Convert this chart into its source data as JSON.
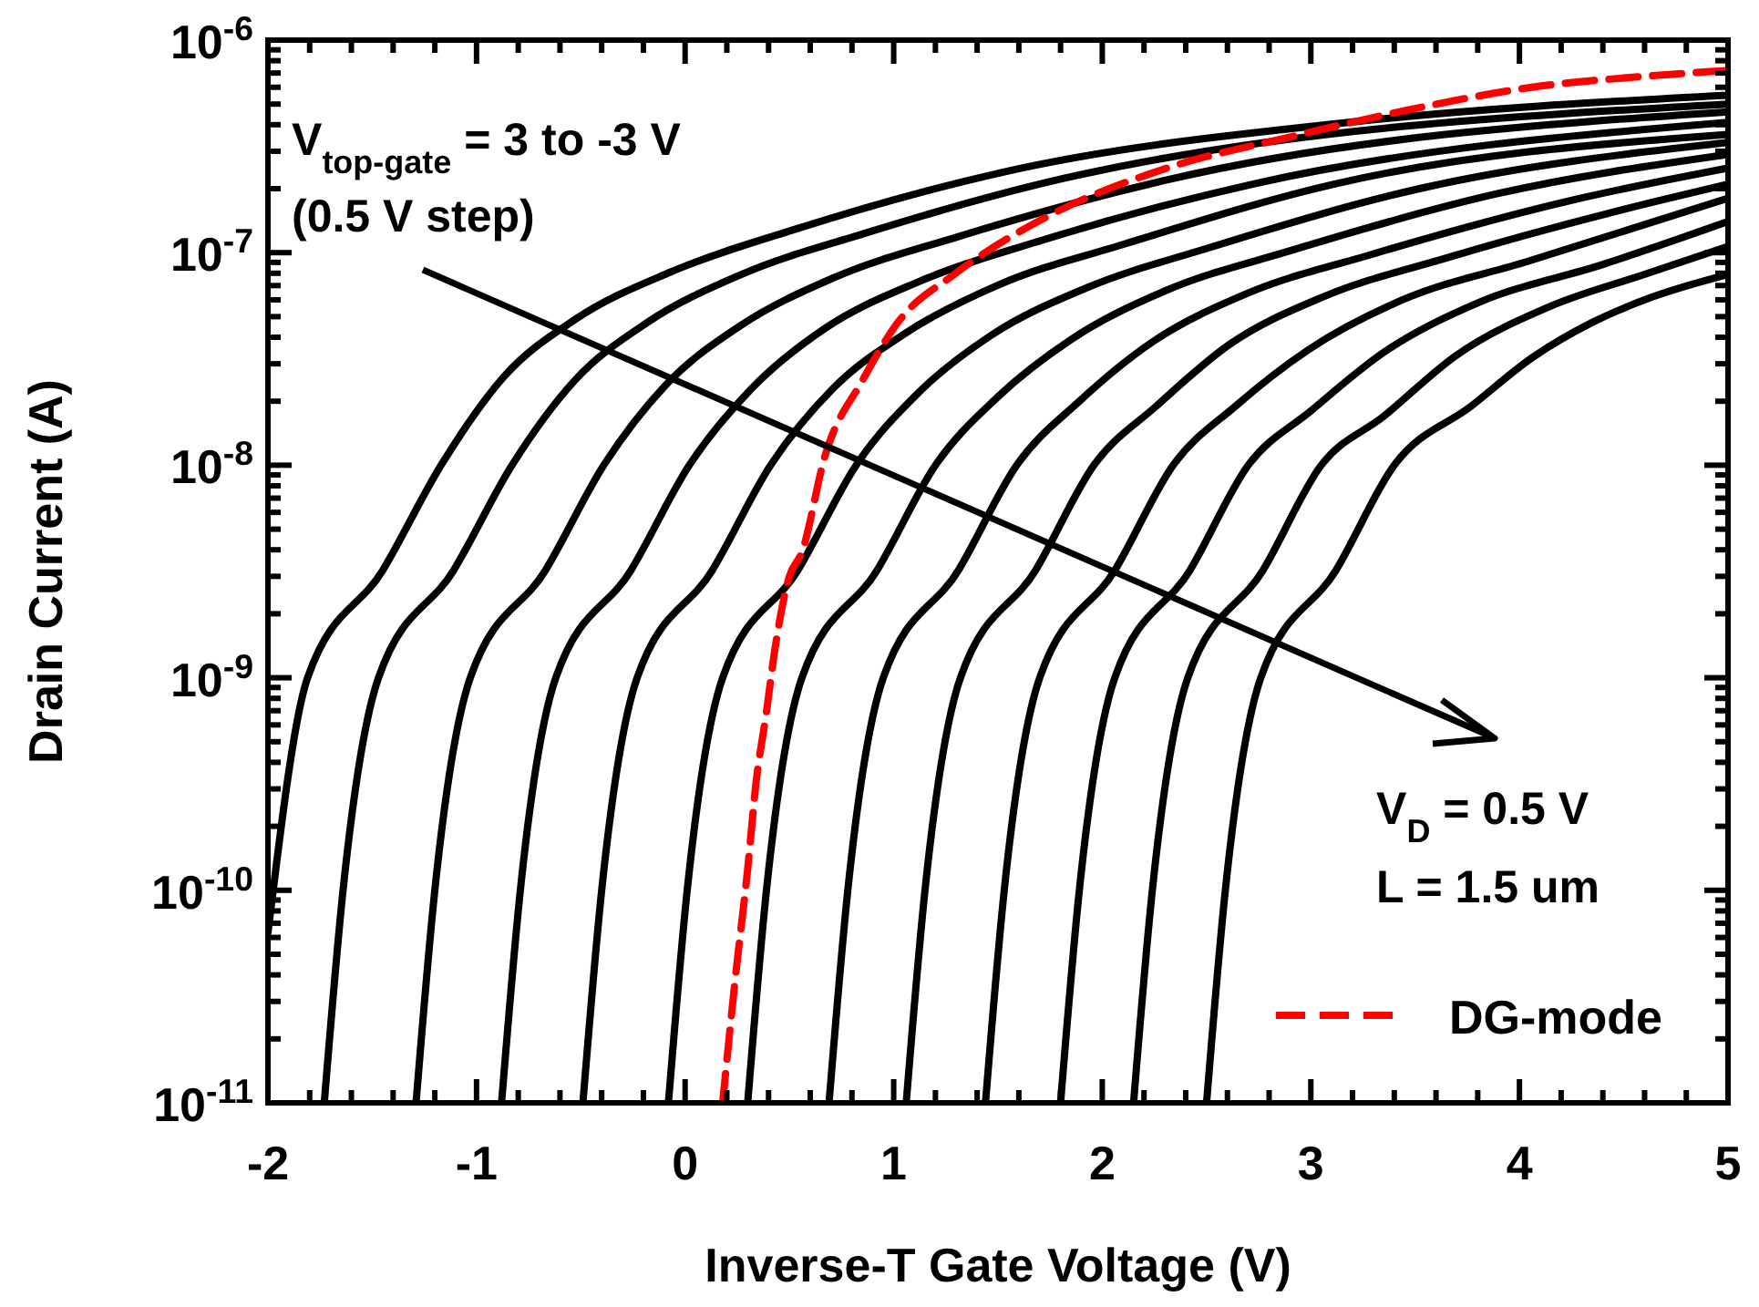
{
  "chart_data": {
    "type": "line",
    "xlabel": "Inverse-T Gate Voltage (V)",
    "ylabel": "Drain Current (A)",
    "log": "y",
    "xlim": [
      -2,
      5
    ],
    "ylim": [
      1e-11,
      1e-06
    ],
    "xticks": [
      -2,
      {
        "value": -1.8,
        "label": null
      },
      {
        "value": -1.6,
        "label": null
      },
      {
        "value": -1.4,
        "label": null
      },
      {
        "value": -1.2,
        "label": null
      },
      -1,
      {
        "value": -0.8,
        "label": null
      },
      {
        "value": -0.6,
        "label": null
      },
      {
        "value": -0.4,
        "label": null
      },
      {
        "value": -0.2,
        "label": null
      },
      0,
      {
        "value": 0.2,
        "label": null
      },
      {
        "value": 0.4,
        "label": null
      },
      {
        "value": 0.6,
        "label": null
      },
      {
        "value": 0.8,
        "label": null
      },
      1,
      {
        "value": 1.2,
        "label": null
      },
      {
        "value": 1.4,
        "label": null
      },
      {
        "value": 1.6,
        "label": null
      },
      {
        "value": 1.8,
        "label": null
      },
      2,
      {
        "value": 2.2,
        "label": null
      },
      {
        "value": 2.4,
        "label": null
      },
      {
        "value": 2.6,
        "label": null
      },
      {
        "value": 2.8,
        "label": null
      },
      3,
      {
        "value": 3.2,
        "label": null
      },
      {
        "value": 3.4,
        "label": null
      },
      {
        "value": 3.6,
        "label": null
      },
      {
        "value": 3.8,
        "label": null
      },
      4,
      {
        "value": 4.2,
        "label": null
      },
      {
        "value": 4.4,
        "label": null
      },
      {
        "value": 4.6,
        "label": null
      },
      {
        "value": 4.8,
        "label": null
      },
      5
    ],
    "yticks": [
      {
        "value": 1e-11,
        "label": "10$^{-11}$"
      },
      {
        "value": 2e-11,
        "label": null
      },
      {
        "value": 3e-11,
        "label": null
      },
      {
        "value": 4e-11,
        "label": null
      },
      {
        "value": 5e-11,
        "label": null
      },
      {
        "value": 6e-11,
        "label": null
      },
      {
        "value": 7e-11,
        "label": null
      },
      {
        "value": 8e-11,
        "label": null
      },
      {
        "value": 9e-11,
        "label": null
      },
      {
        "value": 1e-10,
        "label": "10$^{-10}$"
      },
      {
        "value": 2e-10,
        "label": null
      },
      {
        "value": 3e-10,
        "label": null
      },
      {
        "value": 4e-10,
        "label": null
      },
      {
        "value": 5e-10,
        "label": null
      },
      {
        "value": 6e-10,
        "label": null
      },
      {
        "value": 7e-10,
        "label": null
      },
      {
        "value": 8e-10,
        "label": null
      },
      {
        "value": 9e-10,
        "label": null
      },
      {
        "value": 1e-09,
        "label": "10$^{-9}$"
      },
      {
        "value": 2e-09,
        "label": null
      },
      {
        "value": 3e-09,
        "label": null
      },
      {
        "value": 4e-09,
        "label": null
      },
      {
        "value": 5e-09,
        "label": null
      },
      {
        "value": 6e-09,
        "label": null
      },
      {
        "value": 7e-09,
        "label": null
      },
      {
        "value": 8e-09,
        "label": null
      },
      {
        "value": 9e-09,
        "label": null
      },
      {
        "value": 1e-08,
        "label": "10$^{-8}$"
      },
      {
        "value": 2e-08,
        "label": null
      },
      {
        "value": 3e-08,
        "label": null
      },
      {
        "value": 4e-08,
        "label": null
      },
      {
        "value": 5e-08,
        "label": null
      },
      {
        "value": 6e-08,
        "label": null
      },
      {
        "value": 7e-08,
        "label": null
      },
      {
        "value": 8e-08,
        "label": null
      },
      {
        "value": 9e-08,
        "label": null
      },
      {
        "value": 1e-07,
        "label": "10$^{-7}$"
      },
      {
        "value": 2e-07,
        "label": null
      },
      {
        "value": 3e-07,
        "label": null
      },
      {
        "value": 4e-07,
        "label": null
      },
      {
        "value": 5e-07,
        "label": null
      },
      {
        "value": 6e-07,
        "label": null
      },
      {
        "value": 7e-07,
        "label": null
      },
      {
        "value": 8e-07,
        "label": null
      },
      {
        "value": 9e-07,
        "label": null
      },
      {
        "value": 1e-06,
        "label": "10$^{-6}$"
      }
    ],
    "grid": false,
    "legend": "bottom right",
    "annotations": [
      "V$_{top-gate}$ = 3 to -3 V",
      "(0.5 V step)",
      "V$_{D}$ = 0.5 V",
      "L = 1.5 um"
    ],
    "series": [
      {
        "color": "#000000",
        "x": [
          -2.0,
          -1.81,
          -1.45,
          -1.17,
          -0.87,
          -0.52,
          -0.07,
          0.53,
          1.53,
          3.18,
          5
        ],
        "values": [
          6.3e-11,
          1e-09,
          3.2e-09,
          1e-08,
          2.6e-08,
          4.9e-08,
          8.1e-08,
          1.29e-07,
          2.4e-07,
          4.1e-07,
          5.5e-07
        ]
      },
      {
        "color": "#000000",
        "x": [
          -1.73,
          -1.64,
          -1.47,
          -1.11,
          -0.83,
          -0.53,
          -0.18,
          0.27,
          0.87,
          1.87,
          5
        ],
        "values": [
          1e-11,
          1e-10,
          1e-09,
          3.2e-09,
          1e-08,
          2.5e-08,
          4.7e-08,
          7.9e-08,
          1.24e-07,
          2.3e-07,
          5e-07
        ]
      },
      {
        "color": "#000000",
        "x": [
          -1.29,
          -1.2,
          -1.03,
          -0.67,
          -0.39,
          -0.09,
          0.26,
          0.71,
          1.31,
          2.31,
          5
        ],
        "values": [
          1e-11,
          1e-10,
          1e-09,
          3.2e-09,
          1e-08,
          2.4e-08,
          4.5e-08,
          7.6e-08,
          1.19e-07,
          2.2e-07,
          4.6e-07
        ]
      },
      {
        "color": "#000000",
        "x": [
          -0.88,
          -0.79,
          -0.62,
          -0.26,
          0.02,
          0.32,
          0.67,
          1.12,
          1.72,
          2.72,
          5
        ],
        "values": [
          1e-11,
          1e-10,
          1e-09,
          3.2e-09,
          1e-08,
          2.3e-08,
          4.4e-08,
          7.3e-08,
          1.15e-07,
          2.1e-07,
          4.1e-07
        ]
      },
      {
        "color": "#000000",
        "x": [
          -0.49,
          -0.4,
          -0.23,
          0.13,
          0.41,
          0.71,
          1.06,
          1.51,
          2.11,
          3.11,
          5
        ],
        "values": [
          1e-11,
          1e-10,
          1e-09,
          3.2e-09,
          1e-08,
          2.3e-08,
          4.2e-08,
          7.1e-08,
          1.1e-07,
          2.1e-07,
          3.6e-07
        ]
      },
      {
        "color": "#000000",
        "x": [
          -0.08,
          0.01,
          0.18,
          0.54,
          0.82,
          1.12,
          1.47,
          1.92,
          2.52,
          3.52,
          5
        ],
        "values": [
          1e-11,
          1e-10,
          1e-09,
          3.2e-09,
          1e-08,
          2.2e-08,
          4.1e-08,
          6.8e-08,
          1.06e-07,
          2e-07,
          3.3e-07
        ]
      },
      {
        "color": "#000000",
        "x": [
          0.3,
          0.39,
          0.56,
          0.92,
          1.2,
          1.5,
          1.85,
          2.3,
          2.9,
          3.9,
          5
        ],
        "values": [
          1e-11,
          1e-10,
          1e-09,
          3.2e-09,
          1e-08,
          2.1e-08,
          3.9e-08,
          6.6e-08,
          1.02e-07,
          1.9e-07,
          2.9e-07
        ]
      },
      {
        "color": "#000000",
        "x": [
          0.69,
          0.78,
          0.95,
          1.31,
          1.59,
          1.89,
          2.24,
          2.69,
          3.29,
          4.29,
          5
        ],
        "values": [
          1e-11,
          1e-10,
          1e-09,
          3.2e-09,
          1e-08,
          2e-08,
          3.8e-08,
          6.4e-08,
          9.8e-08,
          1.8e-07,
          2.5e-07
        ]
      },
      {
        "color": "#000000",
        "x": [
          1.06,
          1.15,
          1.32,
          1.68,
          1.96,
          2.26,
          2.61,
          3.06,
          3.66,
          4.66,
          5
        ],
        "values": [
          1e-11,
          1e-10,
          1e-09,
          3.2e-09,
          1e-08,
          1.9e-08,
          3.7e-08,
          6.2e-08,
          9.5e-08,
          1.75e-07,
          2.1e-07
        ]
      },
      {
        "color": "#000000",
        "x": [
          1.44,
          1.53,
          1.7,
          2.06,
          2.34,
          2.64,
          2.99,
          3.44,
          4.04,
          5
        ],
        "values": [
          1e-11,
          1e-10,
          1e-09,
          3.2e-09,
          1e-08,
          1.9e-08,
          3.5e-08,
          6e-08,
          9.1e-08,
          1.8e-07
        ]
      },
      {
        "color": "#000000",
        "x": [
          1.8,
          1.89,
          2.06,
          2.42,
          2.7,
          3.0,
          3.35,
          3.8,
          4.4,
          5
        ],
        "values": [
          1e-11,
          1e-10,
          1e-09,
          3.2e-09,
          1e-08,
          1.8e-08,
          3.4e-08,
          5.8e-08,
          8.8e-08,
          1.4e-07
        ]
      },
      {
        "color": "#000000",
        "x": [
          2.15,
          2.24,
          2.41,
          2.77,
          3.05,
          3.35,
          3.7,
          4.15,
          4.6,
          5
        ],
        "values": [
          1e-11,
          1e-10,
          1e-09,
          3.2e-09,
          1e-08,
          1.7e-08,
          3.3e-08,
          5.6e-08,
          7.9e-08,
          1.07e-07
        ]
      },
      {
        "color": "#000000",
        "x": [
          2.5,
          2.59,
          2.76,
          3.12,
          3.4,
          3.77,
          4.06,
          4.35,
          4.64,
          5
        ],
        "values": [
          1e-11,
          1e-10,
          1e-09,
          3.2e-09,
          1e-08,
          1.9e-08,
          3.2e-08,
          4.7e-08,
          6.2e-08,
          7.9e-08
        ]
      },
      {
        "name": "DG-mode",
        "color": "#ff0000",
        "line_style": "dashed",
        "x": [
          0.18,
          0.24,
          0.3,
          0.34,
          0.39,
          0.43,
          0.5,
          0.56,
          0.67,
          0.85,
          1.02,
          1.29,
          1.72,
          2.31,
          2.9,
          3.47,
          4.06,
          4.64,
          5.0
        ],
        "values": [
          1e-11,
          3.8e-11,
          1.26e-10,
          3.2e-10,
          6.9e-10,
          1.35e-09,
          3e-09,
          3.9e-09,
          1.1e-08,
          2.5e-08,
          4.7e-08,
          7.9e-08,
          1.45e-07,
          2.5e-07,
          3.5e-07,
          4.7e-07,
          6e-07,
          6.8e-07,
          7.2e-07
        ]
      }
    ]
  }
}
